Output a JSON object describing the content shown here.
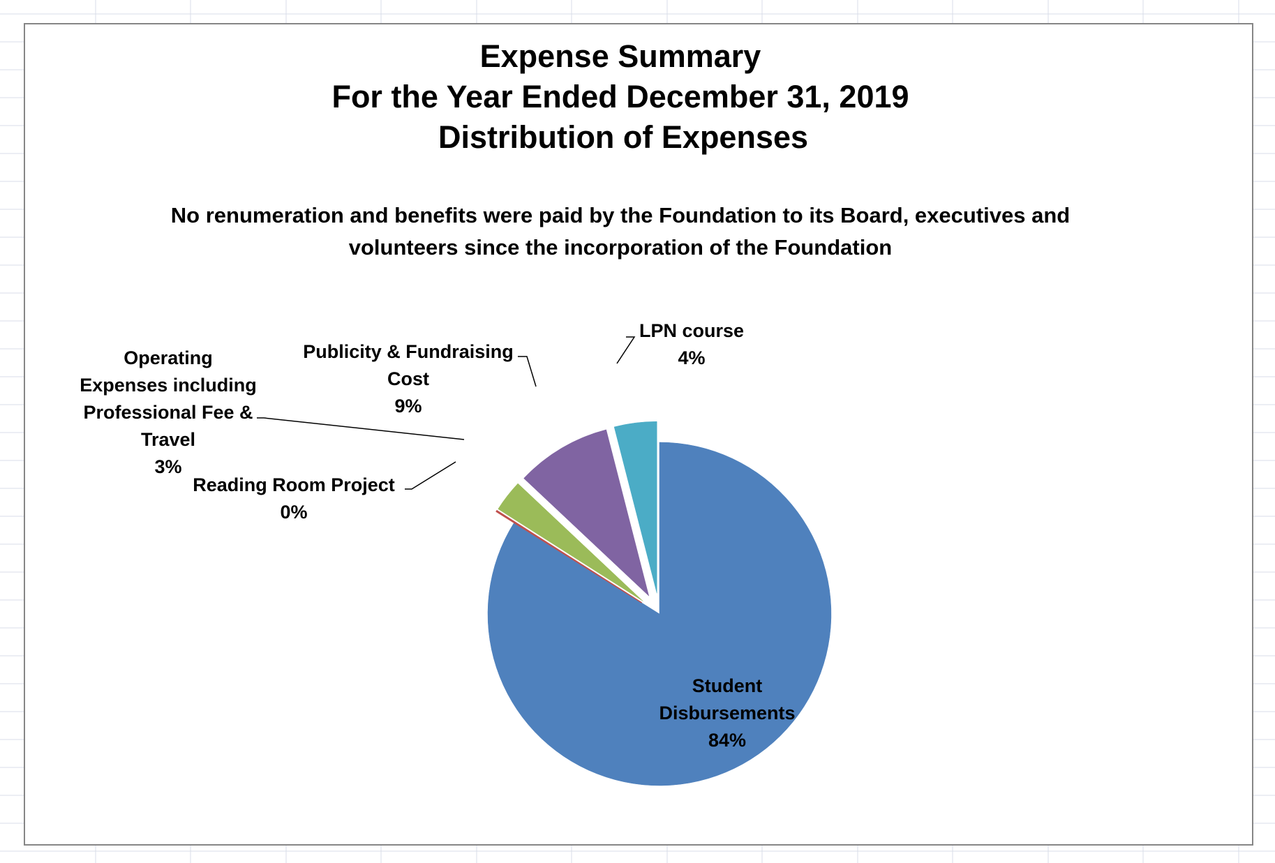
{
  "chart_data": {
    "type": "pie",
    "title": [
      "Expense Summary",
      "For the Year Ended December 31, 2019",
      "Distribution of Expenses"
    ],
    "subtitle": [
      "No renumeration and benefits were paid by the Foundation to its Board, executives and",
      "volunteers since the incorporation of the Foundation"
    ],
    "slices": [
      {
        "name": "Student Disbursements",
        "value": 84,
        "label_lines": [
          "Student",
          "Disbursements",
          "84%"
        ],
        "color": "#4F81BD"
      },
      {
        "name": "Reading Room Project",
        "value": 0.1,
        "label_lines": [
          "Reading Room Project",
          "0%"
        ],
        "color": "#C0504D"
      },
      {
        "name": "Operating Expenses including Professional Fee & Travel",
        "value": 3,
        "label_lines": [
          "Operating",
          "Expenses including",
          "Professional Fee &",
          "Travel",
          "3%"
        ],
        "color": "#9BBB59"
      },
      {
        "name": "Publicity & Fundraising Cost",
        "value": 9,
        "label_lines": [
          "Publicity & Fundraising",
          "Cost",
          "9%"
        ],
        "color": "#8064A2"
      },
      {
        "name": "LPN course",
        "value": 4,
        "label_lines": [
          "LPN course",
          "4%"
        ],
        "color": "#4BACC6"
      }
    ],
    "legend": "none",
    "grid": false,
    "background_color": "#ffffff",
    "border_color": "#868686",
    "sheet_grid_color": "#D9DDE8"
  }
}
